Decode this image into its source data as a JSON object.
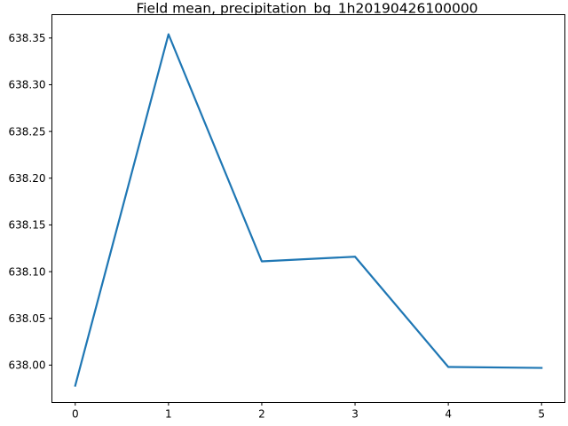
{
  "chart_data": {
    "type": "line",
    "title": "Field mean, precipitation_bg_1h20190426100000",
    "xlabel": "",
    "ylabel": "",
    "x": [
      0,
      1,
      2,
      3,
      4,
      5
    ],
    "series": [
      {
        "values": [
          637.978,
          638.354,
          638.111,
          638.116,
          637.998,
          637.997
        ],
        "color": "#1f77b4"
      }
    ],
    "xlim": [
      -0.25,
      5.25
    ],
    "ylim": [
      637.96,
      638.375
    ],
    "xticks": [
      0,
      1,
      2,
      3,
      4,
      5
    ],
    "xtick_labels": [
      "0",
      "1",
      "2",
      "3",
      "4",
      "5"
    ],
    "yticks": [
      638.0,
      638.05,
      638.1,
      638.15,
      638.2,
      638.25,
      638.3,
      638.35
    ],
    "ytick_labels": [
      "638.00",
      "638.05",
      "638.10",
      "638.15",
      "638.20",
      "638.25",
      "638.30",
      "638.35"
    ],
    "grid": false,
    "legend": false
  }
}
